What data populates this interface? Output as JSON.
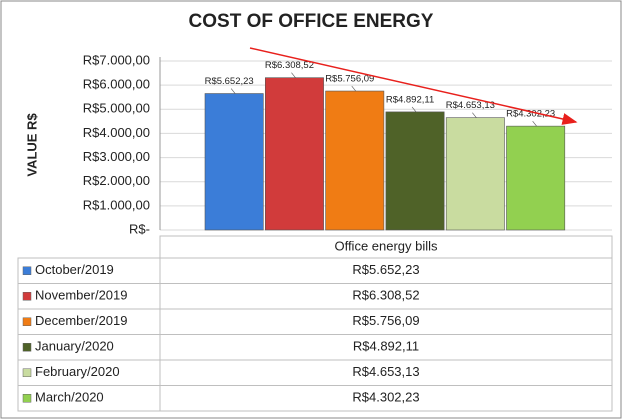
{
  "chart_data": {
    "type": "bar",
    "title": "COST OF OFFICE ENERGY",
    "y_label": "VALUE R$",
    "categories": [
      "Office energy bills"
    ],
    "series": [
      {
        "name": "October/2019",
        "color": "#3b7dd8",
        "values": [
          5652.23
        ],
        "value_labels": [
          "R$5.652,23"
        ]
      },
      {
        "name": "November/2019",
        "color": "#d13b3b",
        "values": [
          6308.52
        ],
        "value_labels": [
          "R$6.308,52"
        ]
      },
      {
        "name": "December/2019",
        "color": "#f07c14",
        "values": [
          5756.09
        ],
        "value_labels": [
          "R$5.756,09"
        ]
      },
      {
        "name": "January/2020",
        "color": "#4f6228",
        "values": [
          4892.11
        ],
        "value_labels": [
          "R$4.892,11"
        ]
      },
      {
        "name": "February/2020",
        "color": "#c9dca0",
        "values": [
          4653.13
        ],
        "value_labels": [
          "R$4.653,13"
        ]
      },
      {
        "name": "March/2020",
        "color": "#92d050",
        "values": [
          4302.23
        ],
        "value_labels": [
          "R$4.302,23"
        ]
      }
    ],
    "ylim": [
      0,
      7000
    ],
    "yticks": [
      {
        "value": 0,
        "label": "R$-"
      },
      {
        "value": 1000,
        "label": "R$1.000,00"
      },
      {
        "value": 2000,
        "label": "R$2.000,00"
      },
      {
        "value": 3000,
        "label": "R$3.000,00"
      },
      {
        "value": 4000,
        "label": "R$4.000,00"
      },
      {
        "value": 5000,
        "label": "R$5.000,00"
      },
      {
        "value": 6000,
        "label": "R$6.000,00"
      },
      {
        "value": 7000,
        "label": "R$7.000,00"
      }
    ],
    "grid": true
  }
}
